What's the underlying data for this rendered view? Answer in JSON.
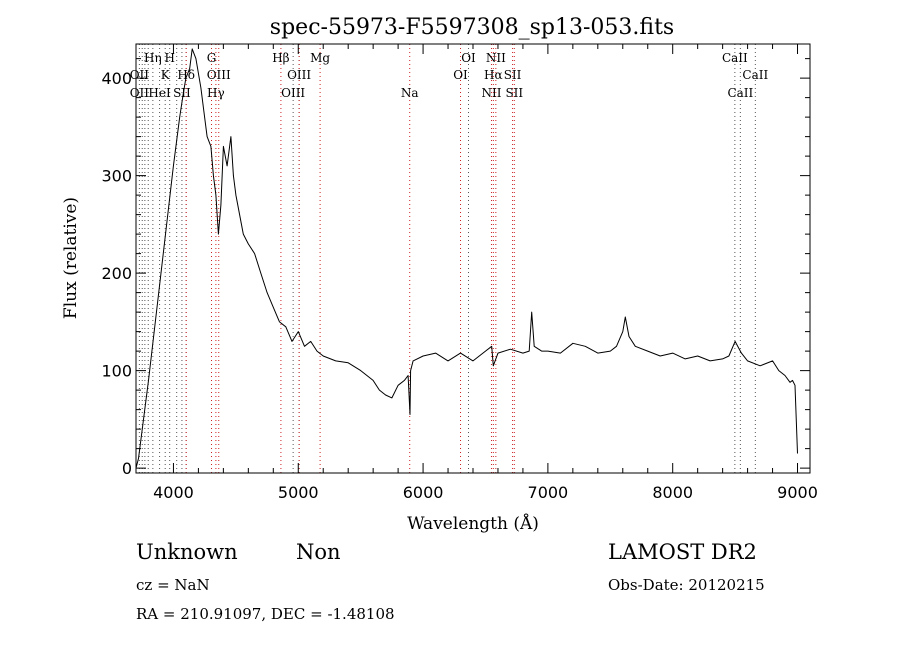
{
  "chart_data": {
    "type": "line",
    "title": "spec-55973-F5597308_sp13-053.fits",
    "xlabel": "Wavelength (Å)",
    "ylabel": "Flux (relative)",
    "xlim": [
      3700,
      9100
    ],
    "ylim": [
      -5,
      435
    ],
    "x_ticks": [
      4000,
      5000,
      6000,
      7000,
      8000,
      9000
    ],
    "y_ticks": [
      0,
      100,
      200,
      300,
      400
    ],
    "grid": false,
    "legend": "none",
    "line_color": "#000000",
    "series": [
      {
        "x": [
          3700,
          3720,
          3800,
          3900,
          4000,
          4050,
          4080,
          4100,
          4130,
          4150,
          4180,
          4200,
          4220,
          4250,
          4270,
          4300,
          4320,
          4340,
          4360,
          4380,
          4400,
          4430,
          4460,
          4480,
          4500,
          4530,
          4560,
          4600,
          4650,
          4700,
          4750,
          4800,
          4850,
          4900,
          4950,
          5000,
          5050,
          5100,
          5150,
          5200,
          5300,
          5400,
          5500,
          5600,
          5650,
          5700,
          5750,
          5800,
          5850,
          5880,
          5895,
          5900,
          5920,
          6000,
          6100,
          6200,
          6300,
          6400,
          6500,
          6550,
          6563,
          6600,
          6700,
          6800,
          6850,
          6870,
          6890,
          6950,
          7000,
          7100,
          7200,
          7300,
          7400,
          7500,
          7550,
          7600,
          7620,
          7650,
          7700,
          7800,
          7900,
          8000,
          8100,
          8200,
          8300,
          8400,
          8450,
          8500,
          8550,
          8600,
          8700,
          8800,
          8850,
          8900,
          8940,
          8960,
          8980,
          9000
        ],
        "y": [
          0,
          10,
          90,
          200,
          310,
          360,
          385,
          400,
          410,
          430,
          420,
          405,
          390,
          360,
          340,
          330,
          300,
          280,
          240,
          270,
          330,
          310,
          340,
          300,
          280,
          260,
          240,
          230,
          220,
          200,
          180,
          165,
          150,
          145,
          130,
          140,
          125,
          130,
          120,
          115,
          110,
          108,
          100,
          90,
          80,
          75,
          72,
          85,
          90,
          95,
          55,
          100,
          110,
          115,
          118,
          110,
          118,
          110,
          120,
          125,
          105,
          118,
          122,
          118,
          120,
          160,
          125,
          120,
          120,
          118,
          128,
          125,
          118,
          120,
          125,
          140,
          155,
          135,
          125,
          120,
          115,
          118,
          112,
          115,
          110,
          112,
          115,
          130,
          118,
          110,
          105,
          110,
          100,
          95,
          88,
          90,
          85,
          15
        ]
      }
    ],
    "line_markers": {
      "color_gray": "#555555",
      "color_red": "#cc2222",
      "wavelengths_gray": [
        3727,
        3750,
        3771,
        3798,
        3835,
        3889,
        3934,
        3970,
        4026,
        4068,
        4102,
        4959,
        5007,
        6300,
        6364,
        8498,
        8542,
        8662
      ],
      "wavelengths_red": [
        4102,
        4305,
        4340,
        4363,
        4861,
        5007,
        5175,
        5893,
        6300,
        6548,
        6563,
        6583,
        6717,
        6731
      ]
    },
    "line_labels": [
      {
        "text": "Hη",
        "wl": 3835,
        "row": 1
      },
      {
        "text": "H",
        "wl": 3970,
        "row": 1
      },
      {
        "text": "OII",
        "wl": 3727,
        "row": 2
      },
      {
        "text": "K",
        "wl": 3934,
        "row": 2
      },
      {
        "text": "Hδ",
        "wl": 4102,
        "row": 2
      },
      {
        "text": "OII",
        "wl": 3727,
        "row": 3
      },
      {
        "text": "HeI",
        "wl": 3889,
        "row": 3
      },
      {
        "text": "SII",
        "wl": 4068,
        "row": 3
      },
      {
        "text": "G",
        "wl": 4305,
        "row": 1
      },
      {
        "text": "OIII",
        "wl": 4363,
        "row": 2
      },
      {
        "text": "Hγ",
        "wl": 4340,
        "row": 3
      },
      {
        "text": "Hβ",
        "wl": 4861,
        "row": 1
      },
      {
        "text": "OIII",
        "wl": 5007,
        "row": 2
      },
      {
        "text": "OIII",
        "wl": 4959,
        "row": 3
      },
      {
        "text": "Mg",
        "wl": 5175,
        "row": 1
      },
      {
        "text": "Na",
        "wl": 5893,
        "row": 3
      },
      {
        "text": "OI",
        "wl": 6364,
        "row": 1
      },
      {
        "text": "OI",
        "wl": 6300,
        "row": 2
      },
      {
        "text": "NII",
        "wl": 6583,
        "row": 1
      },
      {
        "text": "Hα",
        "wl": 6563,
        "row": 2
      },
      {
        "text": "SII",
        "wl": 6717,
        "row": 2
      },
      {
        "text": "NII",
        "wl": 6548,
        "row": 3
      },
      {
        "text": "SII",
        "wl": 6731,
        "row": 3
      },
      {
        "text": "CaII",
        "wl": 8498,
        "row": 1
      },
      {
        "text": "CaII",
        "wl": 8662,
        "row": 2
      },
      {
        "text": "CaII",
        "wl": 8542,
        "row": 3
      }
    ]
  },
  "info": {
    "class": "Unknown",
    "subclass": "Non",
    "cz": "cz = NaN",
    "radec": "RA = 210.91097, DEC =  -1.48108",
    "survey": "LAMOST DR2",
    "obs_date": "Obs-Date: 20120215"
  }
}
